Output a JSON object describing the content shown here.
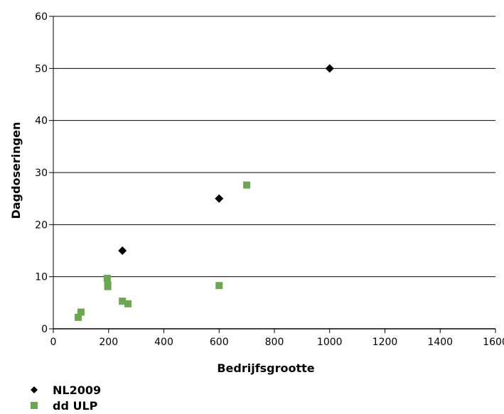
{
  "chart_data": {
    "type": "scatter",
    "title": "",
    "xlabel": "Bedrijfsgrootte",
    "ylabel": "Dagdoseringen",
    "xlim": [
      0,
      1600
    ],
    "ylim": [
      0,
      60
    ],
    "xticks": [
      0,
      200,
      400,
      600,
      800,
      1000,
      1200,
      1400,
      1600
    ],
    "yticks": [
      0,
      10,
      20,
      30,
      40,
      50,
      60
    ],
    "grid": "horizontal",
    "legend_position": "bottom-left",
    "series": [
      {
        "name": "NL2009",
        "marker": "diamond",
        "color": "#000000",
        "points": [
          [
            250,
            15
          ],
          [
            600,
            25
          ],
          [
            1000,
            50
          ]
        ]
      },
      {
        "name": "dd ULP",
        "marker": "square",
        "color": "#6aa84f",
        "points": [
          [
            90,
            2.2
          ],
          [
            100,
            3.2
          ],
          [
            195,
            9.7
          ],
          [
            197,
            8.5
          ],
          [
            197,
            8.1
          ],
          [
            250,
            5.3
          ],
          [
            270,
            4.8
          ],
          [
            600,
            8.3
          ],
          [
            700,
            27.6
          ]
        ]
      }
    ]
  }
}
